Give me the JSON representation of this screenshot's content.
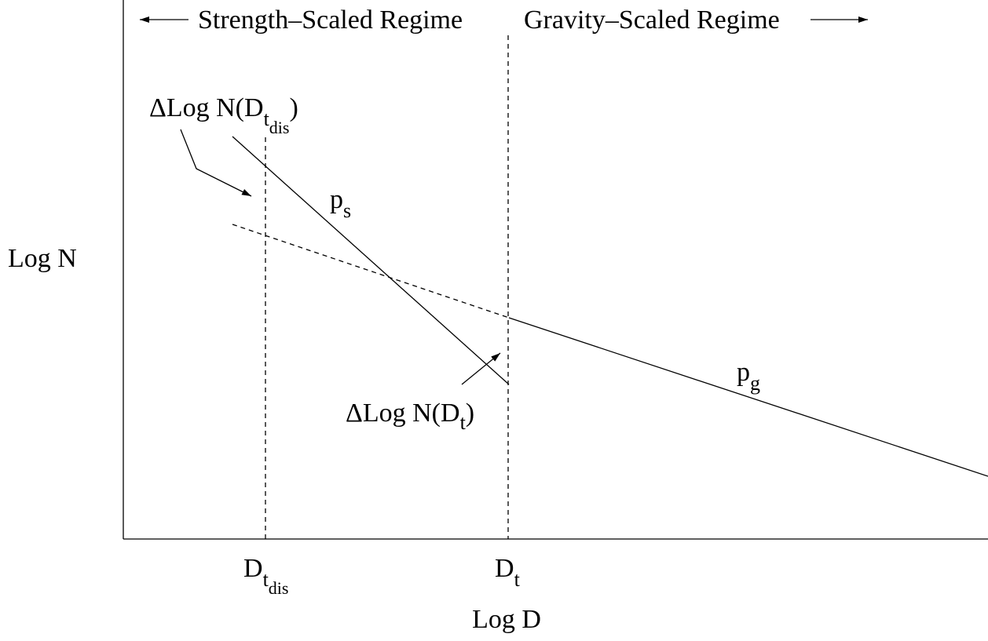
{
  "top_labels": {
    "left": "Strength–Scaled Regime",
    "right": "Gravity–Scaled Regime"
  },
  "axis_labels": {
    "y": "Log N",
    "x": "Log D"
  },
  "slopes": {
    "strength": [
      "p",
      "s"
    ],
    "gravity": [
      "p",
      "g"
    ]
  },
  "ticks": {
    "transition_dis": [
      "D",
      "t",
      "dis"
    ],
    "transition": [
      "D",
      "t"
    ]
  },
  "annotations": {
    "delta_dis": [
      "ΔLog N(D",
      "t",
      "dis",
      ")"
    ],
    "delta": [
      "ΔLog N(D",
      "t",
      ")"
    ]
  }
}
